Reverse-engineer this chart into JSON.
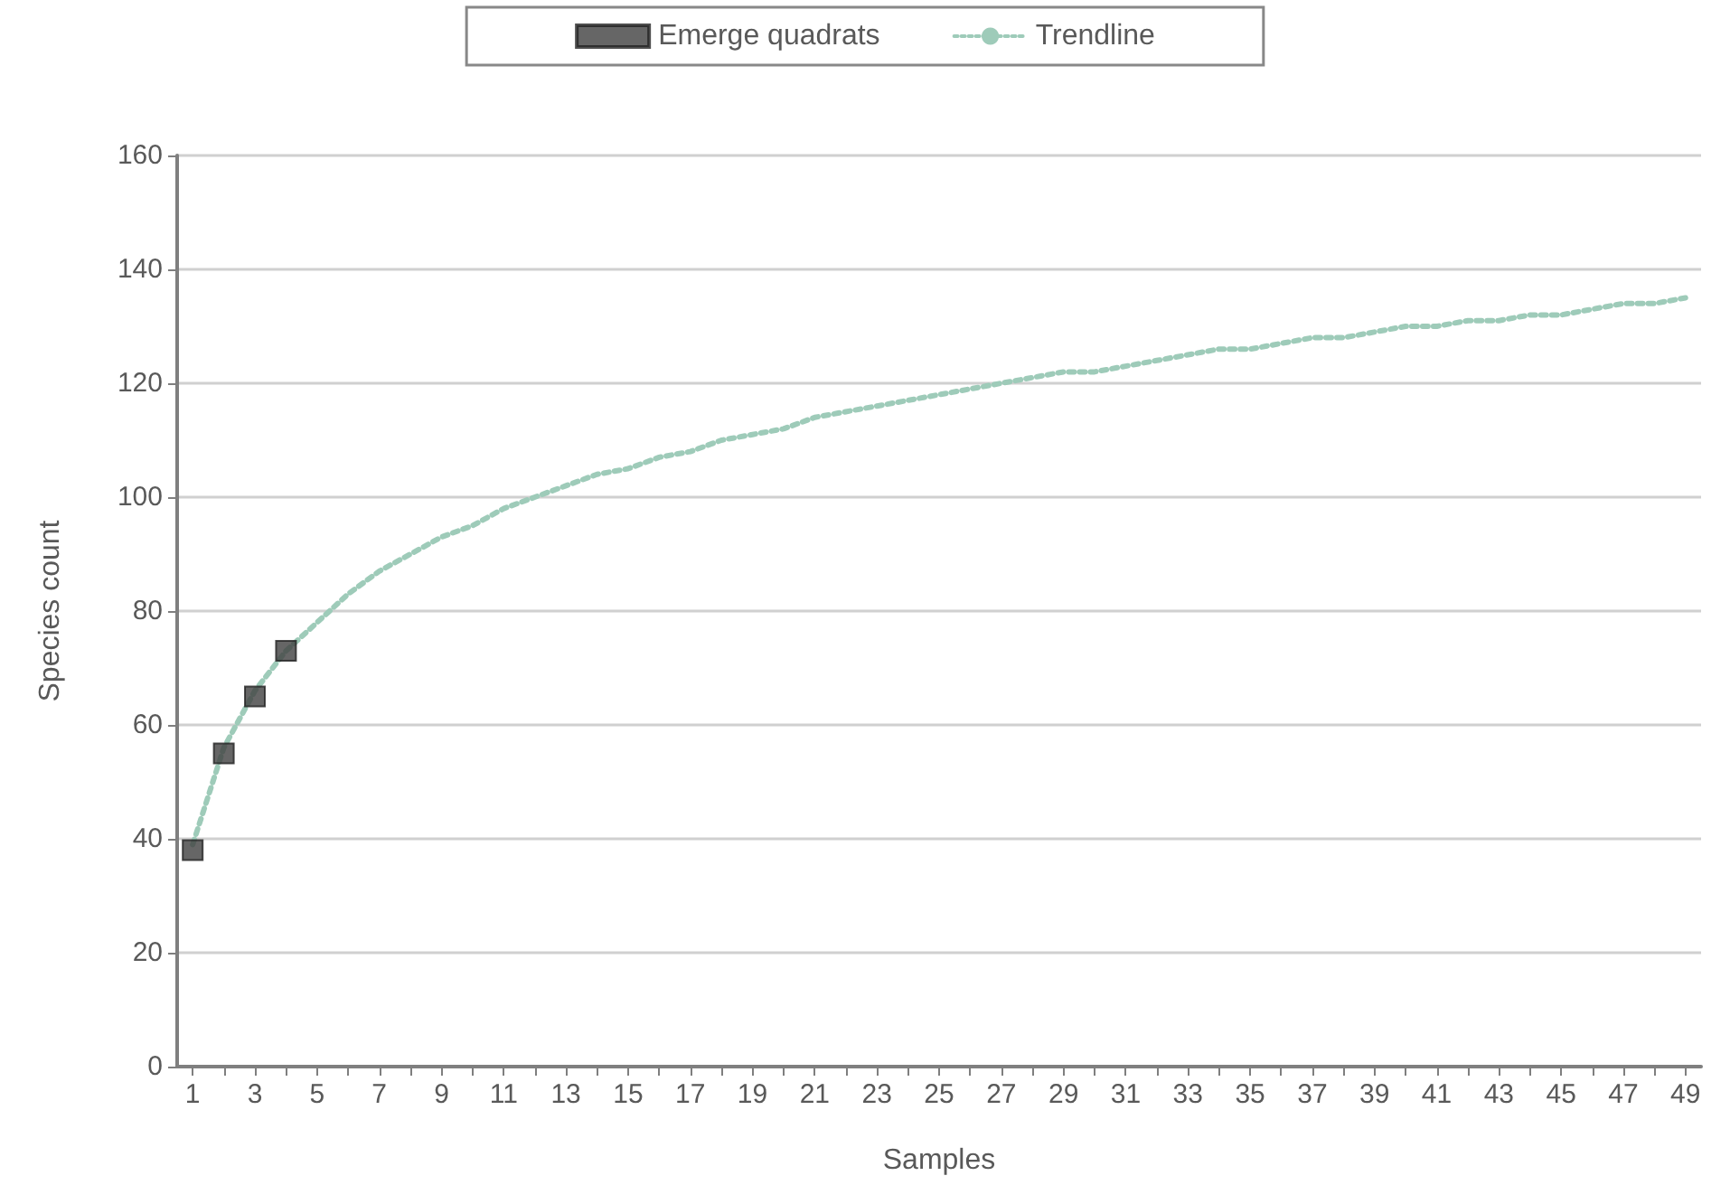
{
  "chart_data": {
    "type": "line",
    "xlabel": "Samples",
    "ylabel": "Species count",
    "x": [
      1,
      2,
      3,
      4,
      5,
      6,
      7,
      8,
      9,
      10,
      11,
      12,
      13,
      14,
      15,
      16,
      17,
      18,
      19,
      20,
      21,
      22,
      23,
      24,
      25,
      26,
      27,
      28,
      29,
      30,
      31,
      32,
      33,
      34,
      35,
      36,
      37,
      38,
      39,
      40,
      41,
      42,
      43,
      44,
      45,
      46,
      47,
      48,
      49
    ],
    "series": [
      {
        "name": "Emerge quadrats",
        "type": "scatter",
        "marker": "square",
        "color": "#404040",
        "x": [
          1,
          2,
          3,
          4
        ],
        "values": [
          38,
          55,
          65,
          73
        ]
      },
      {
        "name": "Trendline",
        "marker": "none",
        "line_style": "dotted",
        "color": "#9ecbb9",
        "values": [
          39,
          56,
          66,
          73,
          78,
          83,
          87,
          90,
          93,
          95,
          98,
          100,
          102,
          104,
          105,
          107,
          108,
          110,
          111,
          112,
          114,
          115,
          116,
          117,
          118,
          119,
          120,
          121,
          122,
          122,
          123,
          124,
          125,
          126,
          126,
          127,
          128,
          128,
          129,
          130,
          130,
          131,
          131,
          132,
          132,
          133,
          134,
          134,
          135
        ]
      }
    ],
    "xlim": [
      0.5,
      49.5
    ],
    "xticks": [
      1,
      {
        "value": 2,
        "label": null
      },
      3,
      {
        "value": 4,
        "label": null
      },
      5,
      {
        "value": 6,
        "label": null
      },
      7,
      {
        "value": 8,
        "label": null
      },
      9,
      {
        "value": 10,
        "label": null
      },
      11,
      {
        "value": 12,
        "label": null
      },
      13,
      {
        "value": 14,
        "label": null
      },
      15,
      {
        "value": 16,
        "label": null
      },
      17,
      {
        "value": 18,
        "label": null
      },
      19,
      {
        "value": 20,
        "label": null
      },
      21,
      {
        "value": 22,
        "label": null
      },
      23,
      {
        "value": 24,
        "label": null
      },
      25,
      {
        "value": 26,
        "label": null
      },
      27,
      {
        "value": 28,
        "label": null
      },
      29,
      {
        "value": 30,
        "label": null
      },
      31,
      {
        "value": 32,
        "label": null
      },
      33,
      {
        "value": 34,
        "label": null
      },
      35,
      {
        "value": 36,
        "label": null
      },
      37,
      {
        "value": 38,
        "label": null
      },
      39,
      {
        "value": 40,
        "label": null
      },
      41,
      {
        "value": 42,
        "label": null
      },
      43,
      {
        "value": 44,
        "label": null
      },
      45,
      {
        "value": 46,
        "label": null
      },
      47,
      {
        "value": 48,
        "label": null
      },
      49
    ],
    "ylim": [
      0,
      160
    ],
    "yticks": [
      0,
      20,
      40,
      60,
      80,
      100,
      120,
      140,
      160
    ],
    "grid": "y",
    "legend": "top"
  }
}
